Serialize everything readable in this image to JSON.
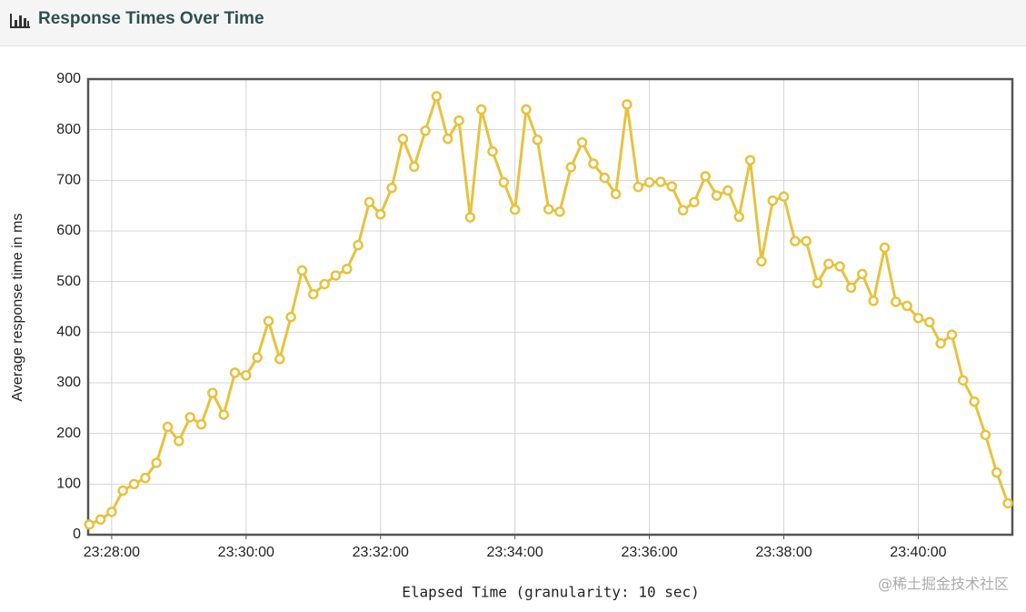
{
  "header": {
    "title": "Response Times Over Time"
  },
  "chart_data": {
    "type": "line",
    "x_label": "Elapsed Time (granularity: 10 sec)",
    "y_label": "Average response time in ms",
    "color": "#e6c23e",
    "x": [
      "23:27:40",
      "23:27:50",
      "23:28:00",
      "23:28:10",
      "23:28:20",
      "23:28:30",
      "23:28:40",
      "23:28:50",
      "23:29:00",
      "23:29:10",
      "23:29:20",
      "23:29:30",
      "23:29:40",
      "23:29:50",
      "23:30:00",
      "23:30:10",
      "23:30:20",
      "23:30:30",
      "23:30:40",
      "23:30:50",
      "23:31:00",
      "23:31:10",
      "23:31:20",
      "23:31:30",
      "23:31:40",
      "23:31:50",
      "23:32:00",
      "23:32:10",
      "23:32:20",
      "23:32:30",
      "23:32:40",
      "23:32:50",
      "23:33:00",
      "23:33:10",
      "23:33:20",
      "23:33:30",
      "23:33:40",
      "23:33:50",
      "23:34:00",
      "23:34:10",
      "23:34:20",
      "23:34:30",
      "23:34:40",
      "23:34:50",
      "23:35:00",
      "23:35:10",
      "23:35:20",
      "23:35:30",
      "23:35:40",
      "23:35:50",
      "23:36:00",
      "23:36:10",
      "23:36:20",
      "23:36:30",
      "23:36:40",
      "23:36:50",
      "23:37:00",
      "23:37:10",
      "23:37:20",
      "23:37:30",
      "23:37:40",
      "23:37:50",
      "23:38:00",
      "23:38:10",
      "23:38:20",
      "23:38:30",
      "23:38:40",
      "23:38:50",
      "23:39:00",
      "23:39:10",
      "23:39:20",
      "23:39:30",
      "23:39:40",
      "23:39:50",
      "23:40:00",
      "23:40:10",
      "23:40:20",
      "23:40:30",
      "23:40:40",
      "23:40:50",
      "23:41:00",
      "23:41:10",
      "23:41:20"
    ],
    "values": [
      20,
      30,
      45,
      87,
      100,
      112,
      142,
      213,
      185,
      232,
      218,
      280,
      237,
      320,
      315,
      350,
      422,
      347,
      430,
      522,
      475,
      495,
      512,
      525,
      572,
      657,
      633,
      685,
      782,
      727,
      798,
      866,
      782,
      818,
      627,
      840,
      757,
      696,
      642,
      840,
      780,
      643,
      638,
      726,
      775,
      733,
      705,
      673,
      850,
      687,
      696,
      697,
      688,
      641,
      657,
      708,
      670,
      680,
      628,
      740,
      540,
      660,
      668,
      580,
      580,
      497,
      535,
      530,
      488,
      515,
      462,
      567,
      460,
      452,
      428,
      420,
      378,
      395,
      305,
      263,
      197,
      123,
      62
    ],
    "xlim": [
      "23:27:39",
      "23:41:24"
    ],
    "xticks": [
      "23:28:00",
      "23:30:00",
      "23:32:00",
      "23:34:00",
      "23:36:00",
      "23:38:00",
      "23:40:00"
    ],
    "ylim": [
      0,
      900
    ],
    "yticks": [
      0,
      100,
      200,
      300,
      400,
      500,
      600,
      700,
      800,
      900
    ],
    "grid": true
  },
  "watermark": "@稀土掘金技术社区"
}
